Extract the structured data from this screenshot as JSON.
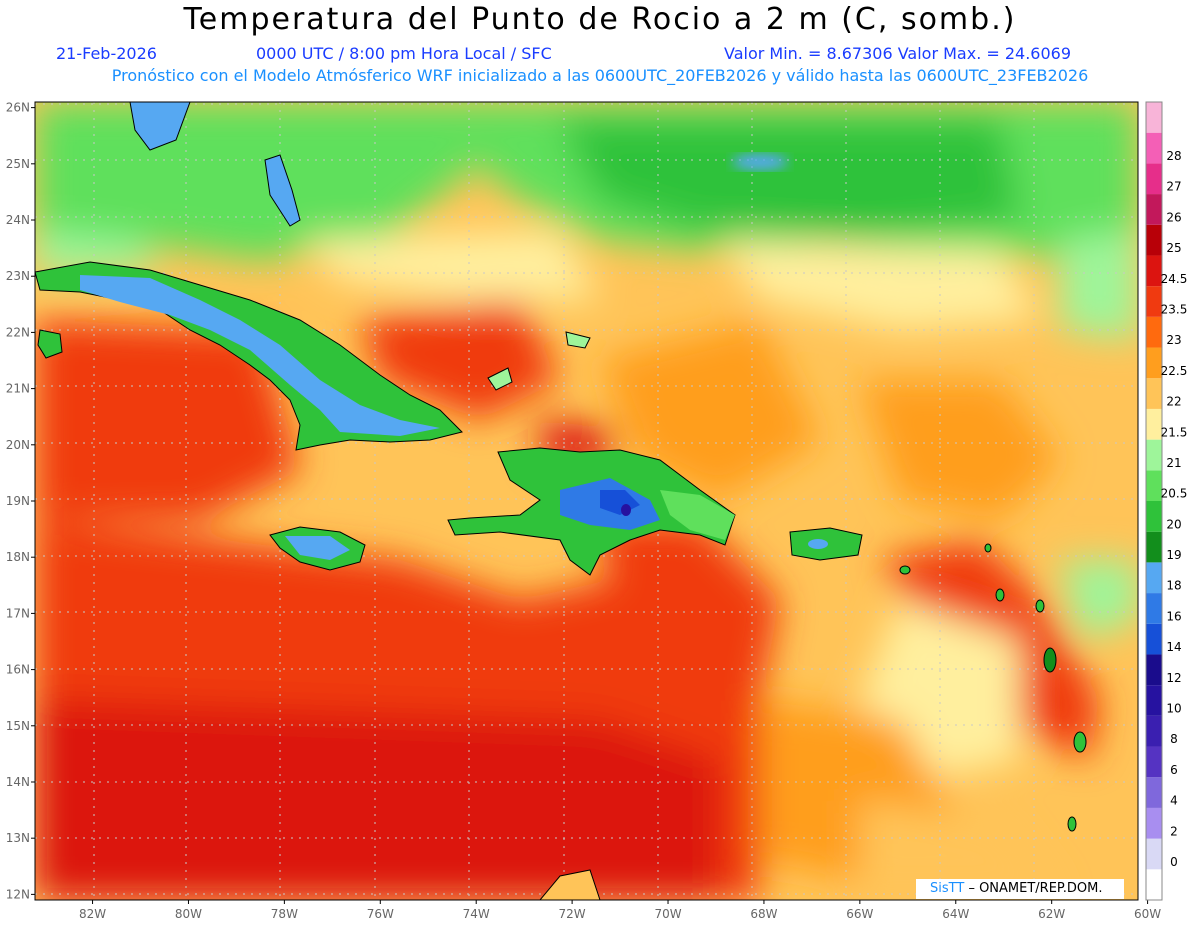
{
  "header": {
    "title": "Temperatura del Punto de Rocio a 2 m (C, somb.)",
    "date": "21-Feb-2026",
    "time": "0000 UTC / 8:00 pm Hora Local / SFC",
    "min_max": "Valor Min. = 8.67306  Valor Max. = 24.6069",
    "subtitle": "Pronóstico con el Modelo Atmósferico WRF inicializado a las 0600UTC_20FEB2026 y válido hasta las  0600UTC_23FEB2026"
  },
  "map": {
    "lon_range": [
      -83.2,
      -60.2
    ],
    "lat_range": [
      11.9,
      26.1
    ],
    "lon_ticks": [
      "82W",
      "80W",
      "78W",
      "76W",
      "74W",
      "72W",
      "70W",
      "68W",
      "66W",
      "64W",
      "62W",
      "60W"
    ],
    "lat_ticks": [
      "12N",
      "13N",
      "14N",
      "15N",
      "16N",
      "17N",
      "18N",
      "19N",
      "20N",
      "21N",
      "22N",
      "23N",
      "24N",
      "25N",
      "26N"
    ],
    "gridlines": true
  },
  "colorbar": {
    "labels": [
      "0",
      "2",
      "4",
      "6",
      "8",
      "10",
      "12",
      "14",
      "16",
      "18",
      "19",
      "20",
      "20.5",
      "21",
      "21.5",
      "22",
      "22.5",
      "23",
      "23.5",
      "24.5",
      "25",
      "26",
      "27",
      "28"
    ],
    "colors": [
      "#ffffff",
      "#d9d9f5",
      "#a88ef0",
      "#7f68dc",
      "#5533c2",
      "#3a1fb0",
      "#2612a0",
      "#1a0c8c",
      "#1650d8",
      "#2f7ae6",
      "#56a8f2",
      "#128e1c",
      "#2fc23a",
      "#5fe05c",
      "#9ef59a",
      "#ffef9e",
      "#ffc458",
      "#ff9e1e",
      "#ff6a0e",
      "#f03a10",
      "#dc1410",
      "#b80008",
      "#c2185b",
      "#e62e8a",
      "#f45fb6",
      "#f8b4d8"
    ]
  },
  "credit": {
    "brand": "SisTT",
    "text": "– ONAMET/REP.DOM."
  }
}
